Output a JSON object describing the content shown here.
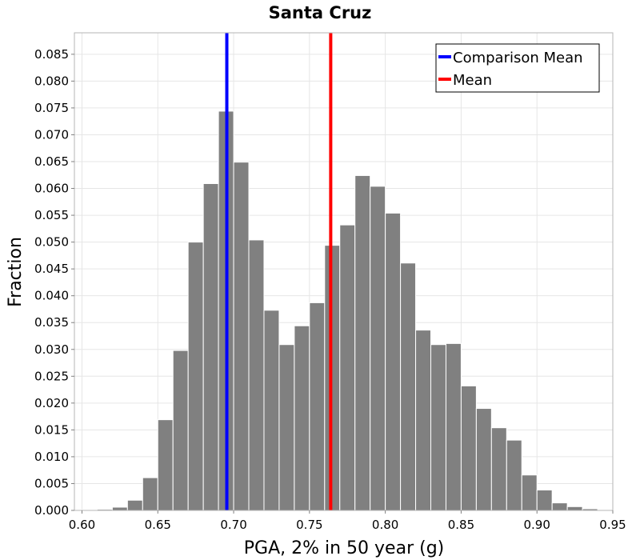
{
  "chart_data": {
    "type": "bar",
    "title": "Santa Cruz",
    "xlabel": "PGA, 2% in 50 year (g)",
    "ylabel": "Fraction",
    "xlim": [
      0.595,
      0.95
    ],
    "ylim": [
      0,
      0.089
    ],
    "grid": true,
    "bin_width": 0.01,
    "bin_centers": [
      0.605,
      0.615,
      0.625,
      0.635,
      0.645,
      0.655,
      0.665,
      0.675,
      0.685,
      0.695,
      0.705,
      0.715,
      0.725,
      0.735,
      0.745,
      0.755,
      0.765,
      0.775,
      0.785,
      0.795,
      0.805,
      0.815,
      0.825,
      0.835,
      0.845,
      0.855,
      0.865,
      0.875,
      0.885,
      0.895,
      0.905,
      0.915,
      0.925,
      0.935
    ],
    "values": [
      0.0001,
      0.0002,
      0.0006,
      0.0019,
      0.0061,
      0.0169,
      0.0298,
      0.05,
      0.0609,
      0.0744,
      0.0649,
      0.0504,
      0.0373,
      0.0309,
      0.0344,
      0.0387,
      0.0494,
      0.0532,
      0.0624,
      0.0604,
      0.0554,
      0.0461,
      0.0336,
      0.0309,
      0.0311,
      0.0232,
      0.019,
      0.0154,
      0.0131,
      0.0066,
      0.0038,
      0.0014,
      0.0007,
      0.0003
    ],
    "x_ticks": [
      "0.60",
      "0.65",
      "0.70",
      "0.75",
      "0.80",
      "0.85",
      "0.90",
      "0.95"
    ],
    "x_tick_values": [
      0.6,
      0.65,
      0.7,
      0.75,
      0.8,
      0.85,
      0.9,
      0.95
    ],
    "y_ticks": [
      "0.000",
      "0.005",
      "0.010",
      "0.015",
      "0.020",
      "0.025",
      "0.030",
      "0.035",
      "0.040",
      "0.045",
      "0.050",
      "0.055",
      "0.060",
      "0.065",
      "0.070",
      "0.075",
      "0.080",
      "0.085"
    ],
    "y_tick_values": [
      0.0,
      0.005,
      0.01,
      0.015,
      0.02,
      0.025,
      0.03,
      0.035,
      0.04,
      0.045,
      0.05,
      0.055,
      0.06,
      0.065,
      0.07,
      0.075,
      0.08,
      0.085
    ],
    "vlines": [
      {
        "name": "Comparison Mean",
        "x": 0.6955,
        "color": "#0000ff"
      },
      {
        "name": "Mean",
        "x": 0.764,
        "color": "#ff0000"
      }
    ],
    "legend": {
      "position": "top-right",
      "entries": [
        {
          "label": "Comparison Mean",
          "color": "#0000ff"
        },
        {
          "label": "Mean",
          "color": "#ff0000"
        }
      ]
    },
    "bar_color": "#808080"
  }
}
